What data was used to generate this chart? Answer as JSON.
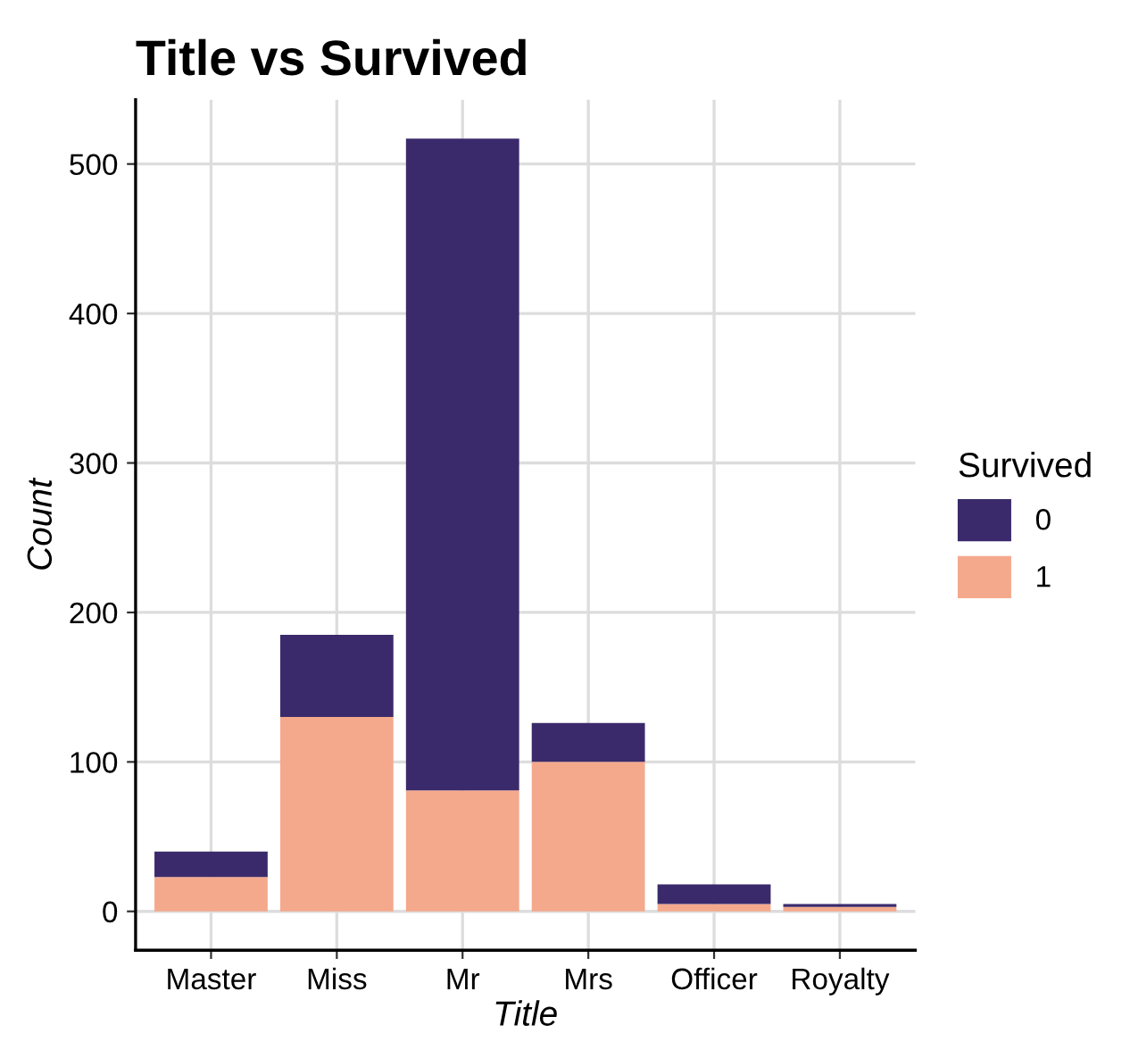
{
  "chart_data": {
    "type": "bar",
    "title": "Title vs Survived",
    "xlabel": "Title",
    "ylabel": "Count",
    "legend_title": "Survived",
    "categories": [
      "Master",
      "Miss",
      "Mr",
      "Mrs",
      "Officer",
      "Royalty"
    ],
    "stacked": true,
    "series": [
      {
        "name": "1",
        "color": "#f4a98c",
        "values": [
          23,
          130,
          81,
          100,
          5,
          3
        ]
      },
      {
        "name": "0",
        "color": "#3b2a6b",
        "values": [
          17,
          55,
          436,
          26,
          13,
          2
        ]
      }
    ],
    "ylim": [
      -26,
      543
    ],
    "yticks": [
      0,
      100,
      200,
      300,
      400,
      500
    ],
    "grid": true,
    "legend": "right"
  }
}
